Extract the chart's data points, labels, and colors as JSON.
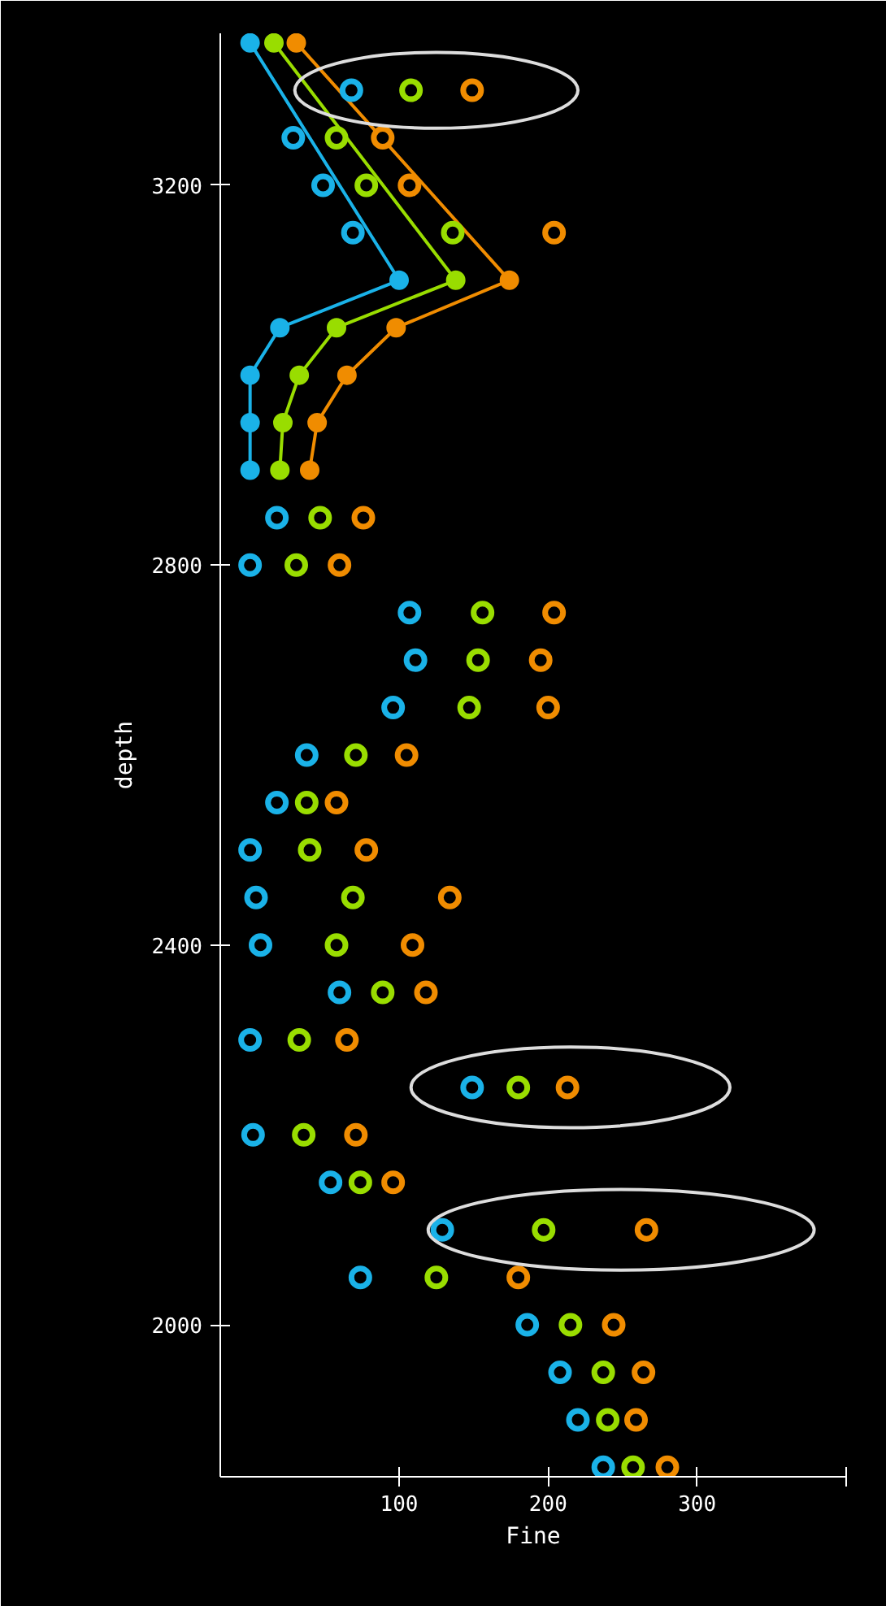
{
  "chart_data": {
    "type": "scatter",
    "xlabel": "Fine",
    "ylabel": "depth",
    "xlim": [
      -20,
      400
    ],
    "ylim": [
      1840,
      3360
    ],
    "xticks": [
      100,
      200,
      300,
      {
        "value": 400,
        "label": null
      }
    ],
    "yticks": [
      2000,
      2400,
      2800,
      3200
    ],
    "grid": false,
    "marker": "circle",
    "series": [
      {
        "type": "line",
        "color": "#1ab2e8",
        "x": [
          0,
          100,
          20,
          0,
          0,
          0
        ],
        "values": [
          3350,
          3100,
          3050,
          3000,
          2950,
          2900
        ]
      },
      {
        "type": "line",
        "color": "#99dd00",
        "x": [
          16,
          138,
          58,
          33,
          22,
          20
        ],
        "values": [
          3350,
          3100,
          3050,
          3000,
          2950,
          2900
        ]
      },
      {
        "type": "line",
        "color": "#f08c00",
        "x": [
          31,
          174,
          98,
          65,
          45,
          40
        ],
        "values": [
          3350,
          3100,
          3050,
          3000,
          2950,
          2900
        ]
      },
      {
        "color": "#1ab2e8",
        "x": [
          68,
          29,
          49,
          69,
          18,
          0,
          107,
          111,
          96,
          38,
          18,
          0,
          4,
          7,
          60,
          0,
          149,
          2,
          54,
          129,
          74,
          186,
          208,
          220,
          237
        ],
        "values": [
          3300,
          3250,
          3200,
          3150,
          2850,
          2800,
          2750,
          2700,
          2650,
          2600,
          2550,
          2500,
          2450,
          2400,
          2350,
          2300,
          2250,
          2200,
          2150,
          2100,
          2050,
          2000,
          1950,
          1900,
          1850
        ]
      },
      {
        "color": "#99dd00",
        "x": [
          108,
          58,
          78,
          136,
          47,
          31,
          156,
          153,
          147,
          71,
          38,
          40,
          69,
          58,
          89,
          33,
          180,
          36,
          74,
          197,
          125,
          215,
          237,
          240,
          257
        ],
        "values": [
          3300,
          3250,
          3200,
          3150,
          2850,
          2800,
          2750,
          2700,
          2650,
          2600,
          2550,
          2500,
          2450,
          2400,
          2350,
          2300,
          2250,
          2200,
          2150,
          2100,
          2050,
          2000,
          1950,
          1900,
          1850
        ]
      },
      {
        "color": "#f08c00",
        "x": [
          149,
          89,
          107,
          204,
          76,
          60,
          204,
          195,
          200,
          105,
          58,
          78,
          134,
          109,
          118,
          65,
          213,
          71,
          96,
          266,
          180,
          244,
          264,
          259,
          280
        ],
        "values": [
          3300,
          3250,
          3200,
          3150,
          2850,
          2800,
          2750,
          2700,
          2650,
          2600,
          2550,
          2500,
          2450,
          2400,
          2350,
          2300,
          2250,
          2200,
          2150,
          2100,
          2050,
          2000,
          1950,
          1900,
          1850
        ]
      }
    ]
  }
}
